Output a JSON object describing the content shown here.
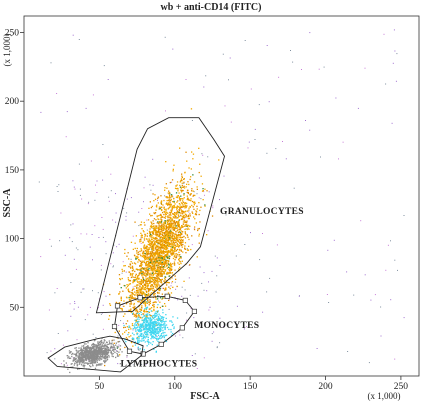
{
  "chart_data": {
    "type": "scatter",
    "title": "wb + anti-CD14 (FITC)",
    "xlabel": "FSC-A",
    "ylabel": "SSC-A",
    "x_scale_note": "(x 1,000)",
    "y_scale_note": "(x 1,000)",
    "xlim": [
      0,
      262
    ],
    "ylim": [
      0,
      262
    ],
    "x_ticks": [
      50,
      100,
      150,
      200,
      250
    ],
    "y_ticks": [
      50,
      100,
      150,
      200,
      250
    ],
    "tick_labels_x": [
      "50",
      "100",
      "150",
      "200",
      "250"
    ],
    "tick_labels_y": [
      "50",
      "100",
      "150",
      "200",
      "250"
    ],
    "gates": [
      {
        "name": "GRANULOCYTES",
        "polygon": [
          [
            48,
            46
          ],
          [
            75,
            165
          ],
          [
            82,
            180
          ],
          [
            96,
            188
          ],
          [
            116,
            188
          ],
          [
            126,
            172
          ],
          [
            133,
            160
          ],
          [
            117,
            94
          ],
          [
            108,
            82
          ],
          [
            72,
            47
          ]
        ],
        "label_pos": [
          130,
          118
        ]
      },
      {
        "name": "MONOCYTES",
        "polygon": [
          [
            60,
            36
          ],
          [
            62,
            51
          ],
          [
            77,
            57
          ],
          [
            95,
            58
          ],
          [
            107,
            55
          ],
          [
            113,
            47
          ],
          [
            105,
            35
          ],
          [
            91,
            23
          ],
          [
            79,
            16
          ],
          [
            70,
            18
          ]
        ],
        "vertices_marked": true,
        "label_pos": [
          113,
          35
        ]
      },
      {
        "name": "LYMPHOCYTES",
        "polygon": [
          [
            16,
            13
          ],
          [
            22,
            7
          ],
          [
            64,
            3
          ],
          [
            78,
            15
          ],
          [
            79,
            22
          ],
          [
            67,
            27
          ],
          [
            57,
            29
          ],
          [
            48,
            27
          ],
          [
            27,
            21
          ]
        ],
        "label_pos": [
          64,
          7
        ]
      }
    ],
    "populations": [
      {
        "gate": "GRANULOCYTES",
        "color": "#f2a900",
        "color2": "#e08a00",
        "accent": "#2d8a3e",
        "count": 2600,
        "center": [
          90,
          90
        ],
        "spread": [
          11,
          24
        ],
        "correlation": 0.72
      },
      {
        "gate": "MONOCYTES",
        "color": "#3fd6f0",
        "count": 500,
        "center": [
          84,
          35
        ],
        "spread": [
          6,
          6
        ],
        "correlation": 0.2
      },
      {
        "gate": "LYMPHOCYTES",
        "color": "#8c8c8c",
        "count": 900,
        "center": [
          46,
          16
        ],
        "spread": [
          7,
          4
        ],
        "correlation": 0.4
      }
    ],
    "background_colors": [
      "#c77bd8",
      "#a06fd0",
      "#7f8f9f"
    ],
    "grid": false,
    "legend": "none"
  }
}
